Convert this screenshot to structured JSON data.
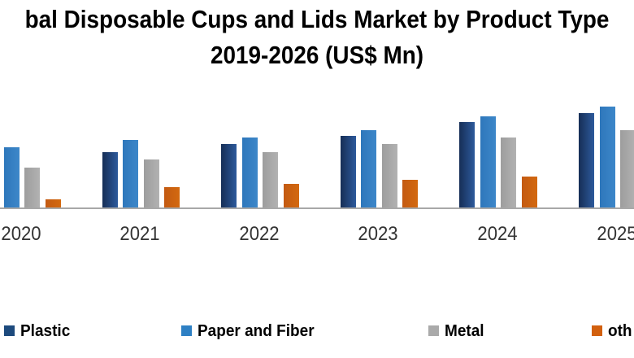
{
  "title": {
    "line1": "bal Disposable Cups and Lids Market by Product Type",
    "line2": "2019-2026 (US$ Mn)"
  },
  "colors": {
    "axis_line": "#a8a8a8",
    "title_text": "#000000",
    "axis_label_text": "#333333"
  },
  "legend": {
    "items": [
      {
        "label": "Plastic",
        "color": "#1d4a7d"
      },
      {
        "label": "Paper and Fiber",
        "color": "#2e80c4"
      },
      {
        "label": "Metal",
        "color": "#aaaaaa"
      },
      {
        "label": "oth",
        "color": "#d2600e"
      }
    ]
  },
  "chart_data": {
    "type": "bar",
    "title": "bal Disposable Cups and Lids Market by Product Type 2019-2026 (US$ Mn)",
    "categories": [
      "2020",
      "2021",
      "2022",
      "2023",
      "2024",
      "2025"
    ],
    "series": [
      {
        "name": "Plastic",
        "color_left": "#162e56",
        "color_right": "#2d5a9c",
        "values": [
          null,
          69,
          79,
          89,
          106,
          117
        ]
      },
      {
        "name": "Paper and Fiber",
        "color_left": "#2e77bb",
        "color_right": "#3d87c9",
        "values": [
          75,
          84,
          87,
          96,
          113,
          125
        ]
      },
      {
        "name": "Metal",
        "color_left": "#9d9d9d",
        "color_right": "#b2b2b2",
        "values": [
          50,
          60,
          69,
          79,
          87,
          96
        ]
      },
      {
        "name": "others",
        "color_left": "#c35a12",
        "color_right": "#d3690f",
        "values": [
          11,
          26,
          30,
          35,
          39,
          null
        ]
      }
    ],
    "units": "US$ Mn",
    "value_axis": "none shown; values are relative bar heights in px",
    "legend_position": "bottom",
    "grid": false
  }
}
